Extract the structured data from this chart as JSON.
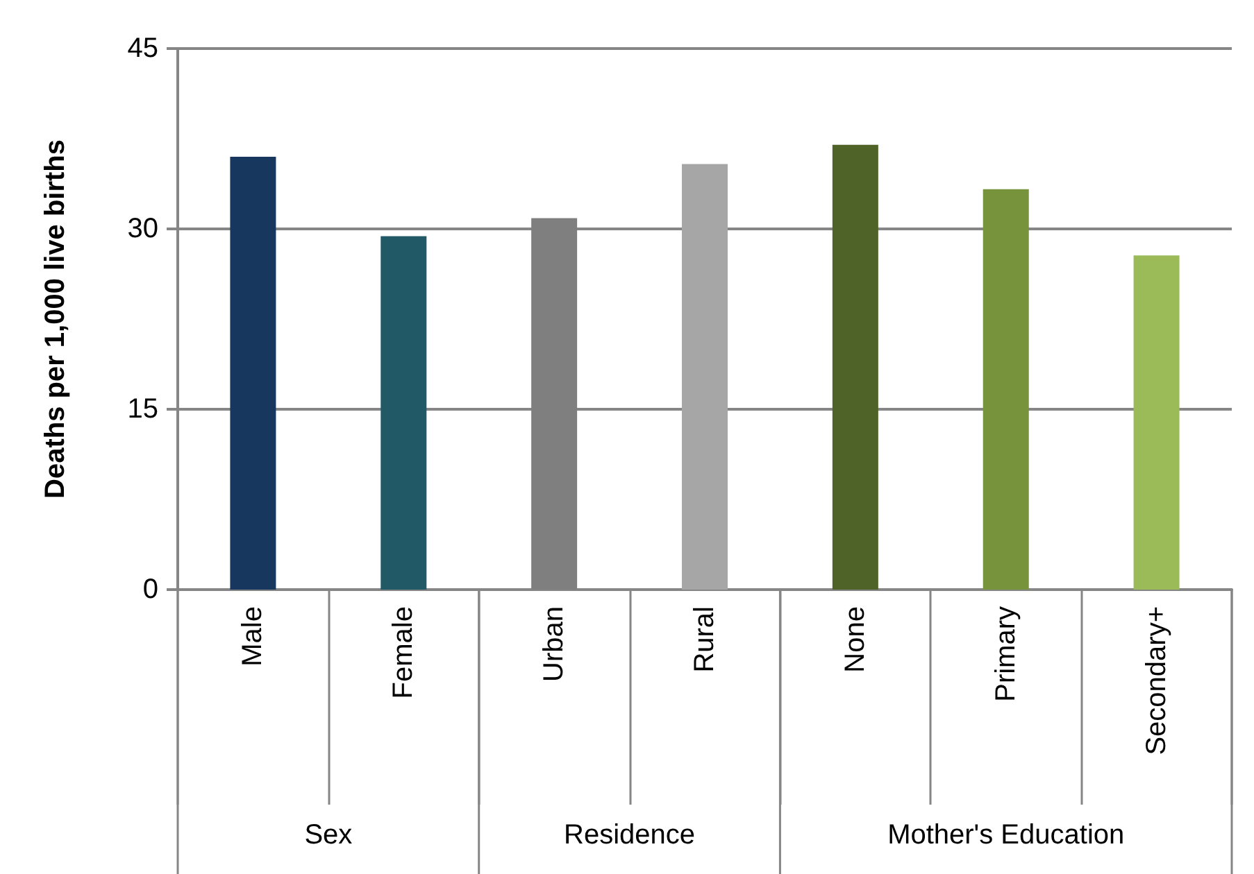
{
  "chart_data": {
    "type": "bar",
    "ylabel": "Deaths per 1,000 live births",
    "categories": [
      "Male",
      "Female",
      "Urban",
      "Rural",
      "None",
      "Primary",
      "Secondary+"
    ],
    "values": [
      36.0,
      29.4,
      30.9,
      35.4,
      37.0,
      33.3,
      27.8
    ],
    "colors": [
      "#17375e",
      "#215967",
      "#7f7f7f",
      "#a6a6a6",
      "#4f6228",
      "#77933c",
      "#9bbb59"
    ],
    "annotations": [
      "Sex",
      "Residence",
      "Mother's Education"
    ],
    "ylim": [
      0,
      45
    ],
    "yticks": [
      0,
      15,
      30,
      45
    ],
    "grid": "y"
  }
}
